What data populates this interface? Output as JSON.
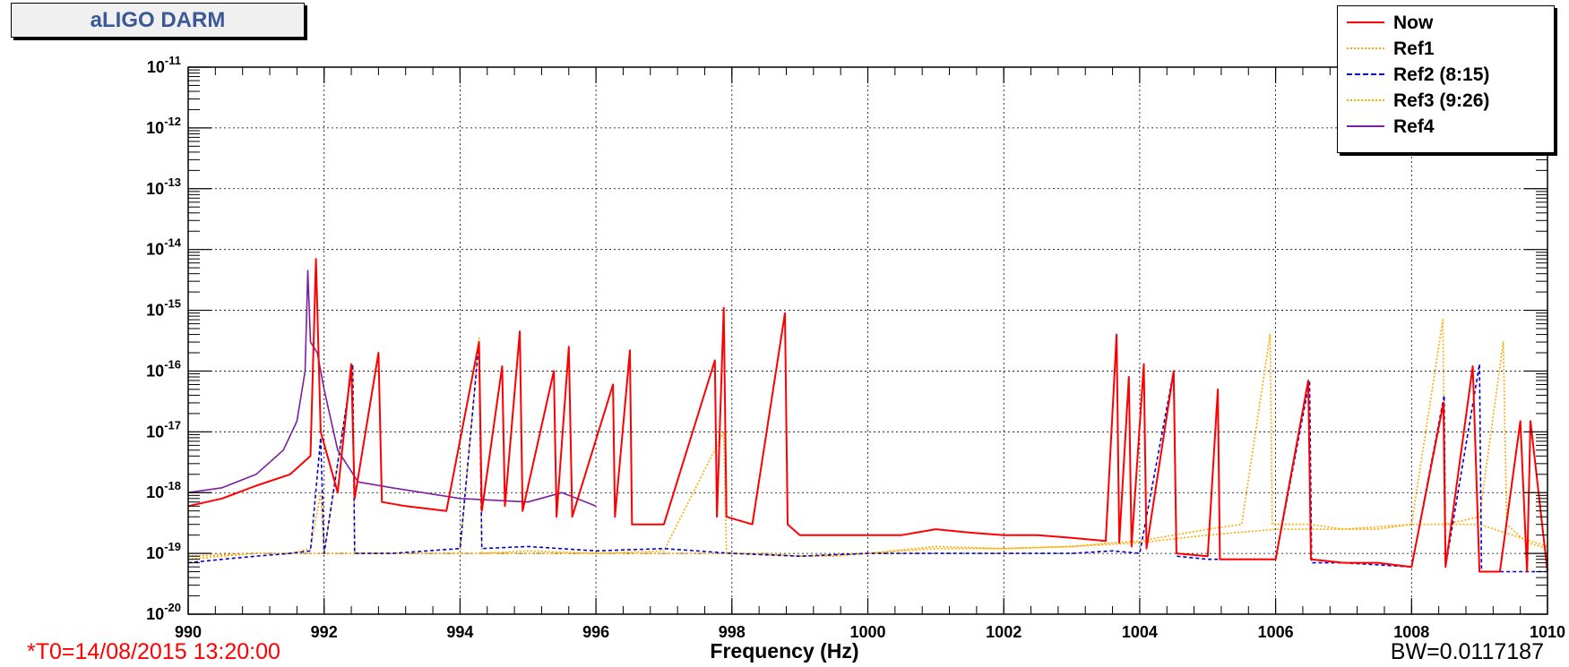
{
  "title": "aLIGO DARM",
  "footer": {
    "t0": "*T0=14/08/2015 13:20:00",
    "bw": "BW=0.0117187"
  },
  "chart_data": {
    "type": "line",
    "xlabel": "Frequency (Hz)",
    "ylabel": "",
    "xlim": [
      990,
      1010
    ],
    "ylim": [
      1e-20,
      1e-11
    ],
    "yscale": "log",
    "grid": true,
    "legend_position": "top-right",
    "x_ticks": [
      "990",
      "992",
      "994",
      "996",
      "998",
      "1000",
      "1002",
      "1004",
      "1006",
      "1008",
      "1010"
    ],
    "y_ticks": [
      {
        "base": "10",
        "exp": "-20"
      },
      {
        "base": "10",
        "exp": "-19"
      },
      {
        "base": "10",
        "exp": "-18"
      },
      {
        "base": "10",
        "exp": "-17"
      },
      {
        "base": "10",
        "exp": "-16"
      },
      {
        "base": "10",
        "exp": "-15"
      },
      {
        "base": "10",
        "exp": "-14"
      },
      {
        "base": "10",
        "exp": "-13"
      },
      {
        "base": "10",
        "exp": "-12"
      },
      {
        "base": "10",
        "exp": "-11"
      }
    ],
    "series": [
      {
        "name": "Now",
        "color": "#ff0000",
        "style": "solid",
        "x": [
          990.0,
          990.5,
          991.0,
          991.5,
          991.8,
          991.88,
          991.95,
          992.2,
          992.4,
          992.45,
          992.8,
          992.85,
          993.2,
          993.8,
          994.28,
          994.32,
          994.62,
          994.66,
          994.88,
          994.92,
          995.38,
          995.42,
          995.6,
          995.65,
          996.25,
          996.28,
          996.5,
          996.53,
          997.0,
          997.75,
          997.78,
          997.88,
          997.92,
          998.3,
          998.78,
          998.82,
          999.0,
          999.5,
          1000.0,
          1000.5,
          1001.0,
          1001.5,
          1002.0,
          1002.5,
          1003.0,
          1003.5,
          1003.66,
          1003.7,
          1003.84,
          1003.88,
          1004.06,
          1004.1,
          1004.5,
          1004.54,
          1005.0,
          1005.15,
          1005.18,
          1005.5,
          1006.0,
          1006.48,
          1006.52,
          1007.0,
          1007.5,
          1008.0,
          1008.47,
          1008.5,
          1008.9,
          1009.0,
          1009.3,
          1009.6,
          1009.7,
          1009.75,
          1010.0
        ],
        "y": [
          6e-19,
          8e-19,
          1.3e-18,
          2e-18,
          4e-18,
          7e-15,
          1e-17,
          1e-18,
          1.3e-16,
          8e-19,
          2e-16,
          7e-19,
          6e-19,
          5e-19,
          3e-16,
          5e-19,
          1.2e-16,
          6e-19,
          4.5e-16,
          5e-19,
          1e-16,
          4e-19,
          2.5e-16,
          4e-19,
          6e-17,
          4e-19,
          2.2e-16,
          3e-19,
          3e-19,
          1.5e-16,
          4e-19,
          1.1e-15,
          4e-19,
          3e-19,
          9e-16,
          3e-19,
          2e-19,
          2e-19,
          2e-19,
          2e-19,
          2.5e-19,
          2.2e-19,
          2e-19,
          2e-19,
          1.8e-19,
          1.6e-19,
          4e-16,
          1.5e-19,
          8e-17,
          1.3e-19,
          1.3e-16,
          1.2e-19,
          1e-16,
          1e-19,
          9e-20,
          5e-17,
          8e-20,
          8e-20,
          8e-20,
          7e-17,
          8e-20,
          7e-20,
          7e-20,
          6e-20,
          3e-17,
          6e-20,
          1.2e-16,
          5e-20,
          5e-20,
          1.5e-17,
          5e-20,
          1.5e-17,
          5e-20
        ]
      },
      {
        "name": "Ref1",
        "color": "#ffaa00",
        "style": "dotted",
        "x": [
          990.0,
          990.5,
          991.0,
          991.5,
          991.8,
          991.95,
          992.0,
          992.42,
          992.45,
          993.0,
          994.0,
          994.28,
          994.32,
          995.0,
          996.0,
          997.0,
          997.88,
          997.92,
          998.5,
          999.0,
          999.5,
          1000.0,
          1001.0,
          1002.0,
          1003.0,
          1003.6,
          1004.0,
          1004.5,
          1005.0,
          1005.5,
          1005.92,
          1005.95,
          1006.5,
          1007.0,
          1007.5,
          1008.0,
          1008.46,
          1008.5,
          1009.0,
          1009.35,
          1009.4,
          1009.7,
          1010.0
        ],
        "y": [
          8e-20,
          9e-20,
          1e-19,
          1e-19,
          1.2e-19,
          1e-18,
          1e-19,
          1.3e-16,
          1e-19,
          1e-19,
          1e-19,
          3.5e-16,
          1e-19,
          1.1e-19,
          1e-19,
          1.1e-19,
          1e-17,
          1e-19,
          1e-19,
          9e-20,
          9e-20,
          1e-19,
          1.3e-19,
          1.2e-19,
          1.3e-19,
          1.5e-19,
          1.6e-19,
          2e-19,
          2.5e-19,
          3e-19,
          4e-16,
          3e-19,
          3e-19,
          2.5e-19,
          2.5e-19,
          3e-19,
          7e-16,
          3e-19,
          4e-19,
          3e-16,
          3e-19,
          1.5e-19,
          1.2e-19
        ]
      },
      {
        "name": "Ref2 (8:15)",
        "color": "#0000cc",
        "style": "dashed",
        "x": [
          990.0,
          990.5,
          991.0,
          991.5,
          991.8,
          991.95,
          992.0,
          992.42,
          992.45,
          993.0,
          994.0,
          994.28,
          994.32,
          995.0,
          996.0,
          997.0,
          998.0,
          999.0,
          1000.0,
          1001.0,
          1002.0,
          1003.0,
          1003.6,
          1004.0,
          1004.5,
          1004.54,
          1005.0,
          1006.0,
          1006.5,
          1006.53,
          1007.0,
          1008.0,
          1008.48,
          1008.5,
          1009.0,
          1009.03,
          1009.5,
          1010.0
        ],
        "y": [
          7e-20,
          8e-20,
          9e-20,
          1e-19,
          1.1e-19,
          8e-18,
          1e-19,
          1.3e-16,
          1e-19,
          1e-19,
          1.2e-19,
          3e-16,
          1.2e-19,
          1.3e-19,
          1.1e-19,
          1.2e-19,
          1e-19,
          9e-20,
          1e-19,
          1e-19,
          1e-19,
          1e-19,
          1.1e-19,
          1e-19,
          1e-16,
          9e-20,
          8e-20,
          8e-20,
          7e-17,
          7e-20,
          7e-20,
          6e-20,
          4e-17,
          6e-20,
          1.3e-16,
          5e-20,
          5e-20,
          5e-20
        ]
      },
      {
        "name": "Ref3 (9:26)",
        "color": "#ffaa00",
        "style": "dotted",
        "x": [
          990.0,
          991.0,
          992.0,
          993.0,
          994.0,
          995.0,
          996.0,
          997.0,
          998.0,
          999.0,
          1000.0,
          1001.0,
          1002.0,
          1003.0,
          1004.0,
          1005.0,
          1006.0,
          1007.0,
          1008.0,
          1009.0,
          1010.0
        ],
        "y": [
          9e-20,
          1e-19,
          1e-19,
          1e-19,
          1e-19,
          1e-19,
          1e-19,
          1e-19,
          1e-19,
          9e-20,
          1e-19,
          1.2e-19,
          1.2e-19,
          1.3e-19,
          1.5e-19,
          2e-19,
          2.5e-19,
          2.5e-19,
          3e-19,
          3e-19,
          1.3e-19
        ]
      },
      {
        "name": "Ref4",
        "color": "#7b1fa2",
        "style": "solid",
        "x": [
          990.0,
          990.5,
          991.0,
          991.4,
          991.6,
          991.72,
          991.76,
          991.8,
          991.9,
          992.0,
          992.2,
          992.5,
          993.0,
          994.0,
          995.0,
          995.5,
          996.0
        ],
        "y": [
          1e-18,
          1.2e-18,
          2e-18,
          5e-18,
          1.5e-17,
          1e-16,
          4.5e-15,
          3e-16,
          2e-16,
          5e-17,
          5e-18,
          1.5e-18,
          1.2e-18,
          8e-19,
          7e-19,
          1e-18,
          6e-19
        ]
      }
    ]
  }
}
